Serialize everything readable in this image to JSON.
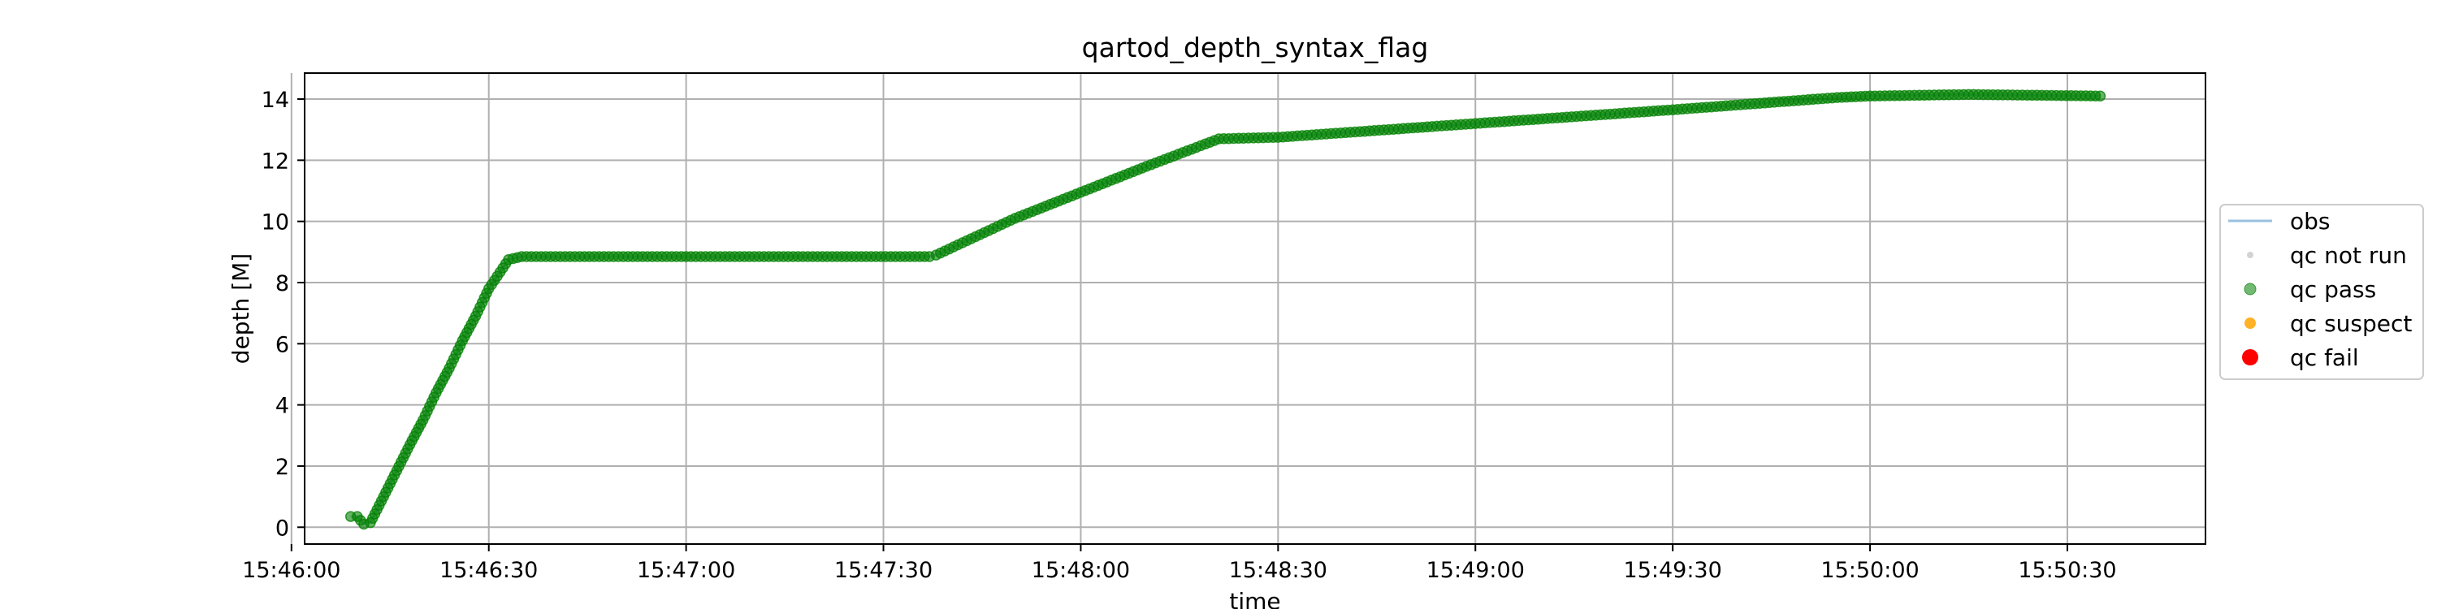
{
  "chart_data": {
    "type": "scatter",
    "title": "qartod_depth_syntax_flag",
    "xlabel": "time",
    "ylabel": "depth [M]",
    "xlim": [
      "15:46:02",
      "15:50:51"
    ],
    "ylim": [
      -0.55,
      14.85
    ],
    "x_ticks": [
      "15:46:00",
      "15:46:30",
      "15:47:00",
      "15:47:30",
      "15:48:00",
      "15:48:30",
      "15:49:00",
      "15:49:30",
      "15:50:00",
      "15:50:30"
    ],
    "y_ticks": [
      0,
      2,
      4,
      6,
      8,
      10,
      12,
      14
    ],
    "grid": true,
    "legend_position": "center-right, outside plot",
    "legend": [
      {
        "label": "obs",
        "kind": "line",
        "color": "#1f77b4"
      },
      {
        "label": "qc not run",
        "kind": "marker",
        "color": "#d3d3d3"
      },
      {
        "label": "qc pass",
        "kind": "marker",
        "color": "#008000"
      },
      {
        "label": "qc suspect",
        "kind": "marker",
        "color": "#ffa500"
      },
      {
        "label": "qc fail",
        "kind": "marker",
        "color": "#ff0000"
      }
    ],
    "series": [
      {
        "name": "qc pass",
        "color": "#008000",
        "points": [
          [
            "15:46:09",
            0.35
          ],
          [
            "15:46:10",
            0.35
          ],
          [
            "15:46:11",
            0.1
          ],
          [
            "15:46:12",
            0.15
          ],
          [
            "15:46:14",
            1.0
          ],
          [
            "15:46:16",
            1.85
          ],
          [
            "15:46:18",
            2.7
          ],
          [
            "15:46:20",
            3.5
          ],
          [
            "15:46:22",
            4.4
          ],
          [
            "15:46:24",
            5.2
          ],
          [
            "15:46:26",
            6.1
          ],
          [
            "15:46:28",
            6.9
          ],
          [
            "15:46:30",
            7.8
          ],
          [
            "15:46:33",
            8.75
          ],
          [
            "15:46:35",
            8.85
          ],
          [
            "15:47:00",
            8.85
          ],
          [
            "15:47:37",
            8.85
          ],
          [
            "15:47:38",
            8.9
          ],
          [
            "15:47:50",
            10.1
          ],
          [
            "15:48:00",
            10.95
          ],
          [
            "15:48:10",
            11.8
          ],
          [
            "15:48:21",
            12.7
          ],
          [
            "15:48:30",
            12.75
          ],
          [
            "15:49:00",
            13.2
          ],
          [
            "15:49:30",
            13.65
          ],
          [
            "15:49:55",
            14.05
          ],
          [
            "15:50:00",
            14.1
          ],
          [
            "15:50:15",
            14.15
          ],
          [
            "15:50:35",
            14.1
          ]
        ]
      }
    ]
  }
}
